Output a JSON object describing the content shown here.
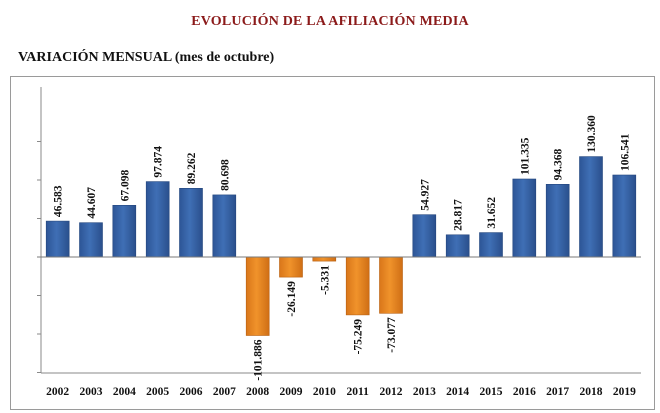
{
  "header": {
    "title": "EVOLUCIÓN DE LA AFILIACIÓN MEDIA",
    "subtitle": "VARIACIÓN MENSUAL (mes de octubre)"
  },
  "colors": {
    "title": "#8b1a1a",
    "positive_bar": "#3f6fb5",
    "negative_bar": "#f0932b"
  },
  "chart_data": {
    "type": "bar",
    "title": "VARIACIÓN MENSUAL (mes de octubre)",
    "categories": [
      "2002",
      "2003",
      "2004",
      "2005",
      "2006",
      "2007",
      "2008",
      "2009",
      "2010",
      "2011",
      "2012",
      "2013",
      "2014",
      "2015",
      "2016",
      "2017",
      "2018",
      "2019"
    ],
    "values": [
      46583,
      44607,
      67098,
      97874,
      89262,
      80698,
      -101886,
      -26149,
      -5331,
      -75249,
      -73077,
      54927,
      28817,
      31652,
      101335,
      94368,
      130360,
      106541
    ],
    "value_labels": [
      "46.583",
      "44.607",
      "67.098",
      "97.874",
      "89.262",
      "80.698",
      "-101.886",
      "-26.149",
      "-5.331",
      "-75.249",
      "-73.077",
      "54.927",
      "28.817",
      "31.652",
      "101.335",
      "94.368",
      "130.360",
      "106.541"
    ],
    "ylim": [
      -170000,
      170000
    ],
    "grid": false,
    "legend": "none"
  }
}
